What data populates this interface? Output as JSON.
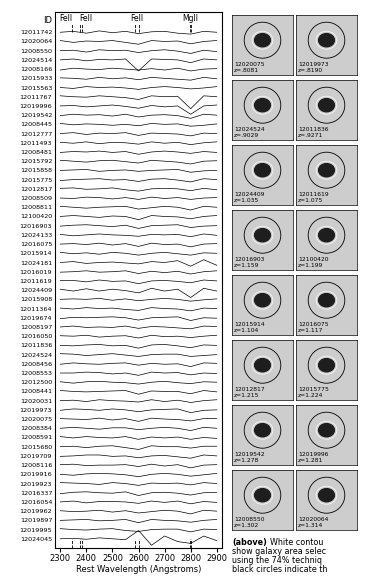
{
  "chart_data": {
    "type": "line",
    "id_header": "ID",
    "xlabel": "Rest Wavelength (Angstroms)",
    "xlim": [
      2280,
      2920
    ],
    "xticks": [
      2300,
      2400,
      2500,
      2600,
      2700,
      2800,
      2900
    ],
    "color": "#000000",
    "line_style": "solid",
    "lines": [
      {
        "label": "FeII",
        "x": [
          2344
        ]
      },
      {
        "label": "FeII",
        "x": [
          2374,
          2383
        ]
      },
      {
        "label": "FeII",
        "x": [
          2586,
          2600
        ]
      },
      {
        "label": "MgII",
        "x": [
          2796,
          2803
        ]
      }
    ],
    "x": [
      2300,
      2350,
      2400,
      2450,
      2500,
      2550,
      2600,
      2650,
      2700,
      2750,
      2800,
      2850,
      2900
    ],
    "series": [
      {
        "name": "12011742",
        "values": [
          0,
          0.1,
          -0.1,
          0.15,
          -0.05,
          0.1,
          -0.15,
          0.05,
          0.1,
          -0.1,
          -0.2,
          0.1,
          0
        ]
      },
      {
        "name": "12020064",
        "values": [
          0.1,
          -0.1,
          0.05,
          0,
          0.1,
          -0.1,
          -0.3,
          0.1,
          0,
          0.05,
          -0.25,
          0,
          0.1
        ]
      },
      {
        "name": "12008550",
        "values": [
          0,
          0.05,
          -0.15,
          0.1,
          0,
          0.05,
          -0.2,
          0,
          0.1,
          -0.05,
          -0.3,
          0.05,
          -0.1
        ]
      },
      {
        "name": "12024514",
        "values": [
          0,
          0.1,
          -0.1,
          0.05,
          0,
          0.1,
          -1.2,
          0.1,
          0.05,
          0,
          -0.3,
          0.1,
          0
        ]
      },
      {
        "name": "12008166",
        "values": [
          -0.1,
          0.1,
          0,
          -0.05,
          0.1,
          0,
          -0.1,
          0.05,
          -0.1,
          0.1,
          -0.2,
          0,
          0.05
        ]
      },
      {
        "name": "12015933",
        "values": [
          0.05,
          0,
          -0.1,
          0.1,
          -0.05,
          0.05,
          -0.15,
          0.1,
          0,
          -0.1,
          -0.2,
          0.1,
          -0.05
        ]
      },
      {
        "name": "12015563",
        "values": [
          0,
          -0.1,
          0.1,
          0,
          0.05,
          -0.05,
          -0.2,
          0,
          0.1,
          0,
          -0.15,
          -0.05,
          0.1
        ]
      },
      {
        "name": "12011767",
        "values": [
          0.1,
          0,
          -0.05,
          0.1,
          0,
          -0.1,
          -0.3,
          0.1,
          0,
          0.05,
          -1.3,
          0.1,
          0
        ]
      },
      {
        "name": "12019996",
        "values": [
          0,
          0.05,
          -0.1,
          0,
          0.1,
          -0.05,
          -0.25,
          0.05,
          -0.1,
          0,
          -0.9,
          0,
          0.1
        ]
      },
      {
        "name": "12019542",
        "values": [
          -0.05,
          0.1,
          0,
          0.05,
          -0.1,
          0.1,
          -0.2,
          0,
          0.05,
          -0.05,
          -0.35,
          0.1,
          0
        ]
      },
      {
        "name": "12008445",
        "values": [
          0.1,
          -0.05,
          0.05,
          0,
          -0.1,
          0,
          -0.15,
          0.1,
          0,
          0.05,
          -0.2,
          -0.1,
          0.05
        ]
      },
      {
        "name": "12012777",
        "values": [
          0,
          0.1,
          -0.1,
          0.05,
          0,
          0.1,
          -0.2,
          0.05,
          0,
          -0.05,
          -0.25,
          0.05,
          0
        ]
      },
      {
        "name": "12011493",
        "values": [
          0.05,
          -0.05,
          0.1,
          -0.1,
          0.05,
          0,
          -0.15,
          0.1,
          -0.05,
          0.05,
          -0.2,
          0,
          0.1
        ]
      },
      {
        "name": "12008481",
        "values": [
          -0.05,
          0.05,
          0,
          0.1,
          -0.05,
          0.05,
          -0.25,
          0,
          0.1,
          0,
          -0.15,
          0.05,
          -0.05
        ]
      },
      {
        "name": "12015792",
        "values": [
          0.1,
          0,
          -0.1,
          0.05,
          0.1,
          -0.05,
          -0.2,
          0.1,
          0,
          -0.1,
          -0.3,
          0,
          0.05
        ]
      },
      {
        "name": "12015858",
        "values": [
          0,
          0.05,
          0.1,
          -0.1,
          0,
          0.05,
          -0.1,
          0,
          0.05,
          0.1,
          -0.2,
          -0.05,
          0
        ]
      },
      {
        "name": "12015775",
        "values": [
          -0.1,
          0,
          0.05,
          0.1,
          -0.05,
          0,
          -0.2,
          0.05,
          0.1,
          -0.05,
          -0.25,
          0.1,
          0
        ]
      },
      {
        "name": "12012817",
        "values": [
          0.05,
          0.1,
          -0.05,
          0,
          0.1,
          -0.1,
          -0.25,
          0,
          0.05,
          0,
          -0.2,
          0.05,
          -0.1
        ]
      },
      {
        "name": "12008509",
        "values": [
          0,
          -0.05,
          0.1,
          0.05,
          -0.1,
          0.05,
          -0.15,
          0.1,
          -0.05,
          0.05,
          -0.15,
          0,
          0.05
        ]
      },
      {
        "name": "12008811",
        "values": [
          0.1,
          0,
          -0.1,
          0,
          0.05,
          0.1,
          -0.2,
          -0.05,
          0.1,
          0,
          -0.3,
          0.1,
          0
        ]
      },
      {
        "name": "12100420",
        "values": [
          0,
          0.1,
          0,
          -0.1,
          0.05,
          0,
          -0.35,
          0.1,
          0,
          -0.05,
          -0.25,
          0,
          0.1
        ]
      },
      {
        "name": "12016903",
        "values": [
          -0.05,
          0.05,
          0.1,
          0,
          -0.1,
          0.05,
          -0.3,
          0,
          0.05,
          0.1,
          -0.2,
          -0.05,
          0
        ]
      },
      {
        "name": "12024133",
        "values": [
          0.05,
          -0.1,
          0,
          0.1,
          0,
          -0.05,
          -0.15,
          0.05,
          0,
          0.05,
          -0.2,
          0.1,
          -0.05
        ]
      },
      {
        "name": "12016075",
        "values": [
          0,
          0.05,
          -0.05,
          0.1,
          -0.1,
          0.05,
          -0.25,
          0.1,
          -0.05,
          0,
          -0.3,
          0,
          0.05
        ]
      },
      {
        "name": "12015914",
        "values": [
          0.1,
          -0.05,
          0.05,
          -0.1,
          0.1,
          0,
          -0.2,
          0,
          0.1,
          -0.05,
          -0.2,
          0.05,
          0
        ]
      },
      {
        "name": "12024181",
        "values": [
          0,
          0.1,
          -0.1,
          0,
          0.05,
          -0.05,
          -0.15,
          0.1,
          0,
          0.2,
          -0.4,
          0.3,
          -0.3
        ]
      },
      {
        "name": "12016019",
        "values": [
          -0.05,
          0,
          0.1,
          -0.05,
          0,
          0.1,
          -0.2,
          0.05,
          -0.1,
          0.05,
          -0.25,
          0,
          0.1
        ]
      },
      {
        "name": "12011619",
        "values": [
          0.05,
          0.05,
          -0.1,
          0.1,
          -0.05,
          0,
          -0.3,
          0,
          0.05,
          -0.05,
          -0.2,
          0.1,
          0
        ]
      },
      {
        "name": "12024409",
        "values": [
          0.1,
          -0.1,
          0.15,
          -0.1,
          0.1,
          -0.05,
          -0.3,
          0.2,
          -0.1,
          0.1,
          -0.8,
          0.2,
          -0.1
        ]
      },
      {
        "name": "12015908",
        "values": [
          0,
          0.05,
          0,
          0.1,
          -0.1,
          0.05,
          -0.15,
          0,
          0.1,
          0,
          -0.2,
          -0.05,
          0.05
        ]
      },
      {
        "name": "12011364",
        "values": [
          0.05,
          -0.05,
          0.1,
          0,
          0.05,
          -0.1,
          -0.2,
          0.1,
          0,
          -0.05,
          -0.25,
          0.05,
          0
        ]
      },
      {
        "name": "12019674",
        "values": [
          -0.1,
          0.05,
          0,
          0.05,
          0.1,
          0,
          -0.25,
          0,
          0.05,
          0.1,
          -0.3,
          0,
          -0.05
        ]
      },
      {
        "name": "12008197",
        "values": [
          0,
          0.1,
          -0.05,
          0,
          -0.05,
          0.1,
          -0.15,
          0.05,
          0,
          -0.1,
          -0.2,
          0.1,
          0.05
        ]
      },
      {
        "name": "12016050",
        "values": [
          0.05,
          0,
          0.1,
          -0.1,
          0,
          0.05,
          -0.2,
          0.1,
          -0.05,
          0,
          -0.15,
          0,
          0.1
        ]
      },
      {
        "name": "12011836",
        "values": [
          0,
          -0.05,
          0.05,
          0.1,
          -0.05,
          0,
          -0.3,
          0.05,
          0.1,
          -0.05,
          -0.25,
          0.05,
          0
        ]
      },
      {
        "name": "12024524",
        "values": [
          0.1,
          0.05,
          -0.1,
          0,
          0.1,
          -0.05,
          -0.2,
          0,
          0.05,
          0.05,
          -0.2,
          -0.1,
          0
        ]
      },
      {
        "name": "12008456",
        "values": [
          -0.05,
          0.1,
          0,
          -0.05,
          0.05,
          0.1,
          -0.15,
          0.05,
          -0.05,
          0,
          -0.3,
          0.1,
          0.05
        ]
      },
      {
        "name": "12008553",
        "values": [
          0,
          0,
          0.1,
          0.05,
          -0.1,
          0,
          -0.25,
          0.1,
          0,
          0.05,
          -0.2,
          0,
          -0.05
        ]
      },
      {
        "name": "12012500",
        "values": [
          0.05,
          -0.1,
          0.05,
          0.1,
          0,
          -0.05,
          -0.2,
          0,
          0.1,
          -0.05,
          -0.15,
          0.05,
          0
        ]
      },
      {
        "name": "12008441",
        "values": [
          0.1,
          0,
          -0.05,
          0,
          0.05,
          0.1,
          -0.3,
          0.05,
          0,
          0,
          -0.25,
          0.1,
          -0.05
        ]
      },
      {
        "name": "12020031",
        "values": [
          0,
          0.05,
          -0.1,
          0.1,
          0,
          -0.05,
          -0.15,
          0.1,
          -0.1,
          0.05,
          -0.2,
          0,
          0.1
        ]
      },
      {
        "name": "12019973",
        "values": [
          -0.05,
          0.1,
          0.05,
          -0.05,
          0.1,
          0,
          -0.2,
          0,
          0.05,
          0.1,
          -0.3,
          -0.05,
          0
        ]
      },
      {
        "name": "12020075",
        "values": [
          0.05,
          0,
          -0.05,
          0.1,
          -0.1,
          0.05,
          -0.25,
          0.1,
          0,
          -0.05,
          -0.2,
          0.05,
          0.05
        ]
      },
      {
        "name": "12008384",
        "values": [
          0,
          0.1,
          0,
          -0.1,
          0.05,
          0.05,
          -0.15,
          0,
          0.1,
          0,
          -0.25,
          0.1,
          0
        ]
      },
      {
        "name": "12008591",
        "values": [
          0.1,
          -0.05,
          0.1,
          0,
          -0.05,
          0.1,
          -0.2,
          0.05,
          -0.05,
          0.05,
          -0.2,
          0,
          -0.1
        ]
      },
      {
        "name": "12015680",
        "values": [
          0,
          0.05,
          -0.1,
          0.05,
          0.1,
          -0.1,
          -0.3,
          0.1,
          0,
          0,
          -0.15,
          0.05,
          0.05
        ]
      },
      {
        "name": "12019709",
        "values": [
          -0.05,
          0,
          0.1,
          0.1,
          -0.05,
          0,
          -0.2,
          0,
          0.05,
          -0.1,
          -0.25,
          0.1,
          0
        ]
      },
      {
        "name": "12008116",
        "values": [
          0.05,
          0.1,
          -0.05,
          0,
          0,
          0.05,
          -0.15,
          0.1,
          -0.1,
          0.05,
          -0.3,
          0,
          0.05
        ]
      },
      {
        "name": "12019916",
        "values": [
          0,
          -0.1,
          0.05,
          0.1,
          0.05,
          -0.05,
          -0.25,
          0,
          0.1,
          0,
          -0.2,
          -0.05,
          0.1
        ]
      },
      {
        "name": "12019923",
        "values": [
          0.1,
          0.05,
          0,
          -0.1,
          0.1,
          0,
          -0.2,
          0.05,
          0,
          0.05,
          -0.15,
          0.1,
          0
        ]
      },
      {
        "name": "12016337",
        "values": [
          -0.1,
          0.05,
          0.1,
          0,
          -0.05,
          0.1,
          -0.3,
          0,
          0.05,
          -0.05,
          -0.25,
          0,
          0.05
        ]
      },
      {
        "name": "12016054",
        "values": [
          0,
          0.1,
          -0.1,
          0.05,
          0.05,
          0,
          -0.15,
          0.1,
          -0.05,
          0.1,
          -0.2,
          0.05,
          -0.05
        ]
      },
      {
        "name": "12019962",
        "values": [
          0.05,
          -0.05,
          0,
          0.1,
          -0.1,
          0.05,
          -0.2,
          -0.05,
          0.1,
          0,
          -0.3,
          0.1,
          0
        ]
      },
      {
        "name": "12019897",
        "values": [
          0,
          0.05,
          0.1,
          -0.05,
          0,
          0.1,
          -0.25,
          0.1,
          0,
          -0.05,
          -0.2,
          0,
          0.1
        ]
      },
      {
        "name": "12019995",
        "values": [
          0.1,
          0,
          -0.05,
          0.05,
          0.1,
          -0.1,
          -0.2,
          0,
          0.05,
          0.05,
          -0.25,
          0.05,
          0
        ]
      },
      {
        "name": "12024045",
        "values": [
          0,
          0.05,
          -0.05,
          0.1,
          0,
          -0.1,
          0.9,
          -0.7,
          0.3,
          -0.3,
          -0.5,
          0.3,
          -0.2
        ]
      }
    ]
  },
  "thumbnails": [
    {
      "id": "12020075",
      "z": "z=.8081"
    },
    {
      "id": "12019973",
      "z": "z=.8190"
    },
    {
      "id": "12024524",
      "z": "z=.9029"
    },
    {
      "id": "12011836",
      "z": "z=.9271"
    },
    {
      "id": "12024409",
      "z": "z=1.035"
    },
    {
      "id": "12011619",
      "z": "z=1.075"
    },
    {
      "id": "12016903",
      "z": "z=1.159"
    },
    {
      "id": "12100420",
      "z": "z=1.199"
    },
    {
      "id": "12015914",
      "z": "z=1.104"
    },
    {
      "id": "12016075",
      "z": "z=1.117"
    },
    {
      "id": "12012817",
      "z": "z=1.215"
    },
    {
      "id": "12015775",
      "z": "z=1.224"
    },
    {
      "id": "12019542",
      "z": "z=1.278"
    },
    {
      "id": "12019996",
      "z": "z=1.281"
    },
    {
      "id": "12008550",
      "z": "z=1.302"
    },
    {
      "id": "12020064",
      "z": "z=1.314"
    }
  ],
  "caption": {
    "bold": "(above)",
    "lines": [
      "White contou",
      "show galaxy area selec",
      "using the 74% techniq",
      "black circles indicate th"
    ]
  }
}
